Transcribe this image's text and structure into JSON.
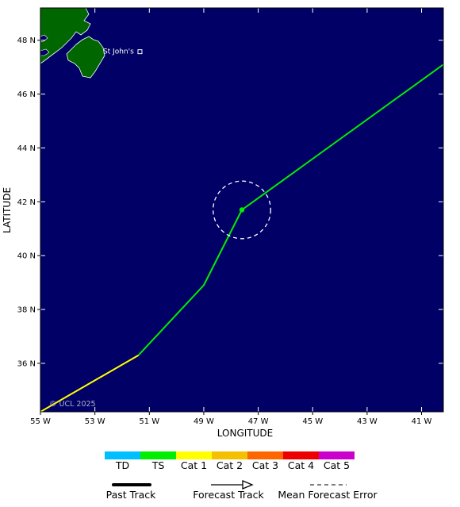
{
  "map": {
    "xlabel": "LONGITUDE",
    "ylabel": "LATITUDE",
    "lon_range": [
      -55,
      -40.2
    ],
    "lat_range": [
      34.2,
      49.2
    ],
    "ocean_color": "#000066",
    "land_color": "#006600",
    "lon_ticks": [
      {
        "value": -55,
        "label": "55 W"
      },
      {
        "value": -53,
        "label": "53 W"
      },
      {
        "value": -51,
        "label": "51 W"
      },
      {
        "value": -49,
        "label": "49 W"
      },
      {
        "value": -47,
        "label": "47 W"
      },
      {
        "value": -45,
        "label": "45 W"
      },
      {
        "value": -43,
        "label": "43 W"
      },
      {
        "value": -41,
        "label": "41 W"
      }
    ],
    "lat_ticks": [
      {
        "value": 36,
        "label": "36 N"
      },
      {
        "value": 38,
        "label": "38 N"
      },
      {
        "value": 40,
        "label": "40 N"
      },
      {
        "value": 42,
        "label": "42 N"
      },
      {
        "value": 44,
        "label": "44 N"
      },
      {
        "value": 46,
        "label": "46 N"
      },
      {
        "value": 48,
        "label": "48 N"
      }
    ],
    "city": {
      "name": "St John's",
      "lon": -52.7,
      "lat": 47.56
    },
    "copyright": "© UCL 2025"
  },
  "track": {
    "segments": [
      {
        "category": "Cat 1",
        "color": "#ffff00",
        "points": [
          [
            -55.0,
            34.2
          ],
          [
            -51.4,
            36.3
          ]
        ]
      },
      {
        "category": "TS",
        "color": "#00ee00",
        "points": [
          [
            -51.4,
            36.3
          ],
          [
            -49.0,
            38.9
          ],
          [
            -47.6,
            41.7
          ],
          [
            -40.2,
            47.1
          ]
        ]
      }
    ],
    "current_position": {
      "lon": -47.6,
      "lat": 41.7,
      "color": "#00ee00"
    },
    "forecast_error_radius_deg": 1.07
  },
  "legend": {
    "categories": [
      {
        "label": "TD",
        "color": "#00bfff"
      },
      {
        "label": "TS",
        "color": "#00ee00"
      },
      {
        "label": "Cat 1",
        "color": "#ffff00"
      },
      {
        "label": "Cat 2",
        "color": "#f5c000"
      },
      {
        "label": "Cat 3",
        "color": "#ff6600"
      },
      {
        "label": "Cat 4",
        "color": "#ee0000"
      },
      {
        "label": "Cat 5",
        "color": "#cc00cc"
      }
    ],
    "line_keys": {
      "past": "Past Track",
      "forecast": "Forecast Track",
      "error": "Mean Forecast Error"
    }
  }
}
